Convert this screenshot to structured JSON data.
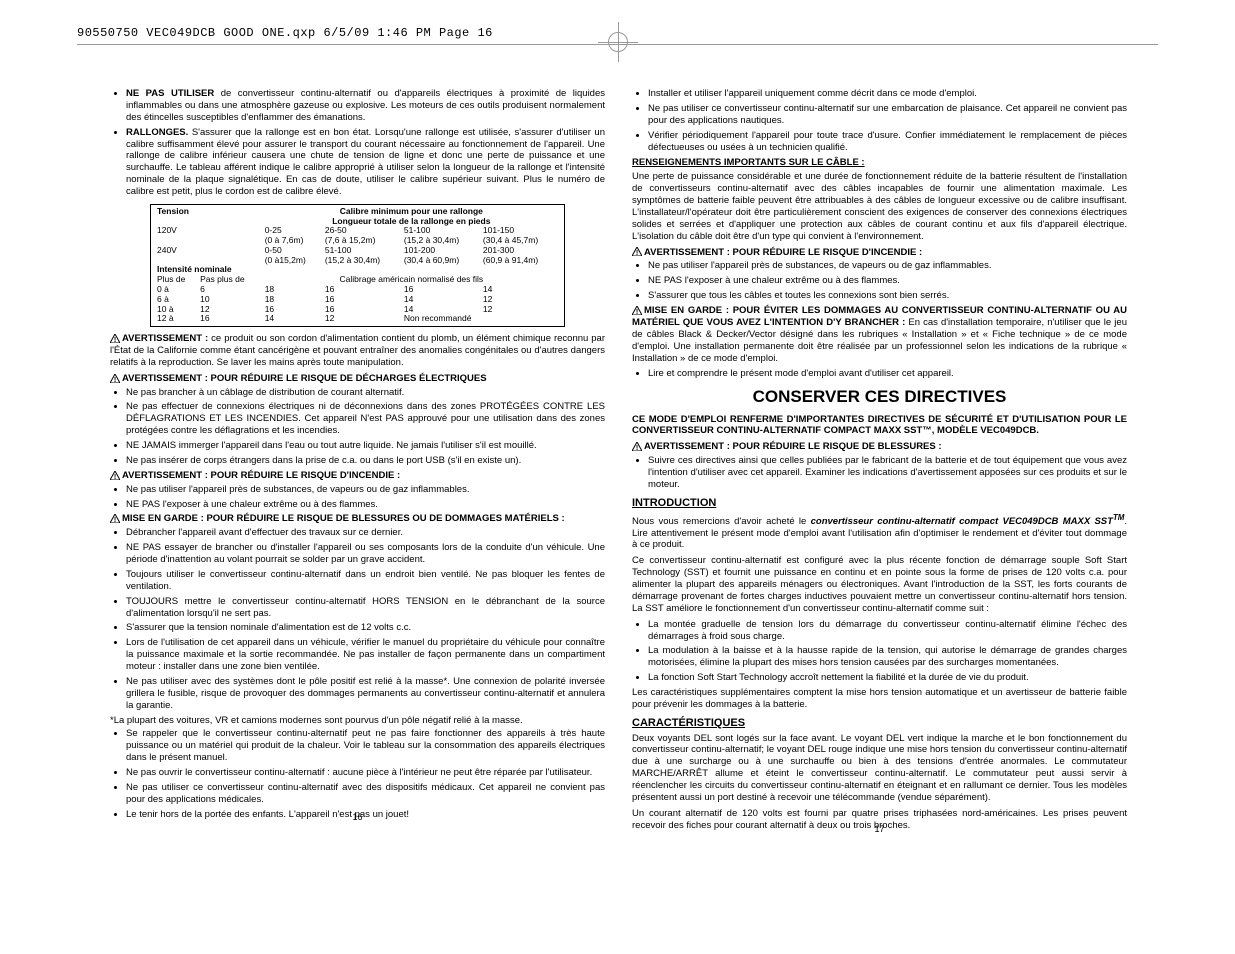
{
  "header": "90550750 VEC049DCB GOOD ONE.qxp  6/5/09  1:46 PM  Page 16",
  "left": {
    "bullets1": [
      {
        "lead": "NE PAS UTILISER",
        "text": " de convertisseur continu-alternatif ou d'appareils électriques à proximité de liquides inflammables ou dans une atmosphère gazeuse ou explosive. Les moteurs de ces outils produisent normalement des étincelles susceptibles d'enflammer des émanations."
      },
      {
        "lead": "RALLONGES.",
        "text": " S'assurer que la rallonge est en bon état. Lorsqu'une rallonge est utilisée, s'assurer d'utiliser un calibre suffisamment élevé pour assurer le transport du courant nécessaire au fonctionnement de l'appareil. Une rallonge de calibre inférieur causera une chute de tension de ligne et donc une perte de puissance et une surchauffe. Le tableau afférent indique le calibre approprié à utiliser selon la longueur de la rallonge et l'intensité nominale de la plaque signalétique. En cas de doute, utiliser le calibre supérieur suivant. Plus le numéro de calibre est petit, plus le cordon est de calibre élevé."
      }
    ],
    "table": {
      "title": "Calibre minimum pour une rallonge",
      "subtitle": "Longueur totale de la rallonge en pieds",
      "tension": "Tension",
      "row120": {
        "v": "120V",
        "c1": "0-25",
        "c1b": "(0 à 7,6m)",
        "c2": "26-50",
        "c2b": "(7,6 à 15,2m)",
        "c3": "51-100",
        "c3b": "(15,2 à 30,4m)",
        "c4": "101-150",
        "c4b": "(30,4 à 45,7m)"
      },
      "row240": {
        "v": "240V",
        "c1": "0-50",
        "c1b": "(0 à15,2m)",
        "c2": "51-100",
        "c2b": "(15,2 à 30,4m)",
        "c3": "101-200",
        "c3b": "(30,4 à 60,9m)",
        "c4": "201-300",
        "c4b": "(60,9 à 91,4m)"
      },
      "intensite": "Intensité nominale",
      "plus_de": "Plus de",
      "pas_plus_de": "Pas plus de",
      "calib": "Calibrage américain normalisé des fils",
      "rows": [
        [
          "0   à",
          "6",
          "18",
          "16",
          "16",
          "14"
        ],
        [
          "6   à",
          "10",
          "18",
          "16",
          "14",
          "12"
        ],
        [
          "10 à",
          "12",
          "16",
          "16",
          "14",
          "12"
        ],
        [
          "12 à",
          "16",
          "14",
          "12",
          "Non recommandé",
          ""
        ]
      ]
    },
    "warn_lead": "AVERTISSEMENT :",
    "warn_lead_text": " ce produit ou son cordon d'alimentation contient du plomb, un élément chimique reconnu par l'État de la Californie comme étant cancérigène et pouvant entraîner des anomalies congénitales ou d'autres dangers relatifs à la reproduction. Se laver les mains après toute manipulation.",
    "warn_elec_title": "AVERTISSEMENT :  POUR RÉDUIRE LE RISQUE DE DÉCHARGES ÉLECTRIQUES",
    "elec_bullets": [
      "Ne pas brancher à un câblage de distribution de courant alternatif.",
      "Ne pas effectuer de connexions électriques ni de déconnexions dans des zones PROTÉGÉES CONTRE LES DÉFLAGRATIONS ET LES INCENDIES. Cet appareil N'est PAS approuvé pour une utilisation dans des zones protégées contre les déflagrations et les incendies.",
      "NE JAMAIS immerger l'appareil dans l'eau ou tout autre liquide. Ne jamais l'utiliser s'il est mouillé.",
      "Ne pas insérer de corps étrangers dans la prise de c.a. ou dans le port USB (s'il en existe un)."
    ],
    "warn_fire_title": "AVERTISSEMENT : POUR RÉDUIRE LE RISQUE D'INCENDIE :",
    "fire_bullets": [
      "Ne pas utiliser l'appareil près de substances, de vapeurs ou de gaz inflammables.",
      "NE PAS l'exposer à une chaleur extrême ou à des flammes."
    ],
    "warn_injury_title": "MISE EN GARDE : POUR RÉDUIRE LE RISQUE DE BLESSURES OU DE DOMMAGES MATÉRIELS :",
    "injury_bullets": [
      "Débrancher l'appareil avant d'effectuer des travaux sur ce dernier.",
      "NE PAS essayer de brancher ou d'installer l'appareil ou ses composants lors de la conduite d'un véhicule. Une période d'inattention au volant pourrait se solder par un grave accident.",
      "Toujours utiliser le convertisseur continu-alternatif dans un endroit bien ventilé. Ne pas bloquer les fentes de ventilation.",
      "TOUJOURS mettre le convertisseur continu-alternatif HORS TENSION en le débranchant de la source d'alimentation lorsqu'il ne sert pas.",
      "S'assurer que la tension nominale d'alimentation est de 12 volts c.c.",
      "Lors de l'utilisation de cet appareil dans un véhicule, vérifier le manuel du propriétaire du véhicule pour connaître la puissance maximale et la sortie recommandée. Ne pas installer de façon permanente dans un compartiment moteur : installer dans une zone bien ventilée.",
      "Ne pas utiliser avec des systèmes dont le pôle positif est relié à la masse*. Une connexion de polarité inversée grillera le fusible, risque de provoquer des dommages permanents au convertisseur continu-alternatif et annulera la garantie."
    ],
    "footnote": "*La plupart des voitures, VR et camions modernes sont pourvus d'un pôle négatif relié à la masse.",
    "injury_bullets2": [
      "Se rappeler que le convertisseur continu-alternatif peut ne pas faire fonctionner des appareils à très haute puissance ou un matériel qui produit de la chaleur. Voir le tableau sur la consommation des appareils électriques dans le présent manuel.",
      "Ne pas ouvrir le convertisseur continu-alternatif : aucune pièce à l'intérieur ne peut être réparée par l'utilisateur.",
      "Ne pas utiliser ce convertisseur continu-alternatif avec des dispositifs médicaux. Cet appareil ne convient pas pour des applications médicales.",
      "Le tenir hors de la portée des enfants. L'appareil n'est pas un jouet!"
    ],
    "pagenum": "16"
  },
  "right": {
    "bullets1": [
      "Installer et utiliser l'appareil uniquement comme décrit dans ce mode d'emploi.",
      "Ne pas utiliser ce convertisseur continu-alternatif sur une embarcation de plaisance. Cet appareil ne convient pas pour des applications nautiques.",
      "Vérifier périodiquement l'appareil pour toute trace d'usure. Confier immédiatement le remplacement de pièces défectueuses ou usées à un technicien qualifié."
    ],
    "cable_title": "RENSEIGNEMENTS IMPORTANTS SUR LE CÂBLE :",
    "cable_para": "Une perte de puissance considérable et une durée de fonctionnement réduite de la batterie résultent de l'installation de convertisseurs continu-alternatif avec des câbles incapables de fournir une alimentation maximale. Les symptômes de batterie faible peuvent être attribuables à des câbles de longueur excessive ou de calibre insuffisant. L'installateur/l'opérateur doit être particulièrement conscient des exigences de conserver des connexions électriques solides et serrées et d'appliquer une protection aux câbles de courant continu et aux fils d'appareil électrique. L'isolation du câble doit être d'un type qui convient à l'environnement.",
    "warn_fire_title": "AVERTISSEMENT : POUR RÉDUIRE LE RISQUE D'INCENDIE :",
    "fire_bullets": [
      "Ne pas utiliser l'appareil près de substances, de vapeurs ou de gaz inflammables.",
      "NE PAS l'exposer à une chaleur extrême ou à des flammes.",
      "S'assurer que tous les câbles et toutes les connexions sont bien serrés."
    ],
    "mise_title": "MISE EN GARDE : POUR ÉVITER LES DOMMAGES AU CONVERTISSEUR CONTINU-ALTERNATIF OU AU MATÉRIEL QUE VOUS AVEZ L'INTENTION D'Y BRANCHER :",
    "mise_text": " En cas d'installation temporaire, n'utiliser que le jeu de câbles Black & Decker/Vector désigné dans les rubriques « Installation » et « Fiche technique » de ce mode d'emploi. Une installation permanente doit être réalisée par un professionnel selon les indications de la rubrique « Installation » de ce mode d'emploi.",
    "mise_bullet": "Lire et comprendre le présent mode d'emploi avant d'utiliser cet appareil.",
    "big_title": "CONSERVER CES DIRECTIVES",
    "directive_para": "CE MODE D'EMPLOI RENFERME D'IMPORTANTES DIRECTIVES DE SÉCURITÉ ET D'UTILISATION POUR LE CONVERTISSEUR CONTINU-ALTERNATIF COMPACT MAXX SST™, MODÈLE VEC049DCB.",
    "warn_bless_title": "AVERTISSEMENT : POUR RÉDUIRE LE RISQUE DE BLESSURES :",
    "bless_bullet": "Suivre ces directives ainsi que celles publiées par le fabricant de la batterie et de tout équipement que vous avez l'intention d'utiliser avec cet appareil. Examiner les indications d'avertissement apposées sur ces produits et sur le moteur.",
    "intro_title": "INTRODUCTION",
    "intro_p1a": "Nous vous remercions d'avoir acheté le ",
    "intro_p1b": "convertisseur continu-alternatif compact VEC049DCB MAXX SST",
    "intro_p1c": ". Lire attentivement le présent mode d'emploi avant l'utilisation afin d'optimiser le rendement et d'éviter tout dommage à ce produit.",
    "intro_p2": "Ce convertisseur continu-alternatif est configuré avec la plus récente fonction de démarrage souple Soft Start Technology (SST) et fournit une puissance en continu et en pointe sous la forme de prises de 120 volts c.a. pour alimenter la plupart des appareils ménagers ou électroniques. Avant l'introduction de la SST, les forts courants de démarrage provenant de fortes charges inductives pouvaient mettre un convertisseur continu-alternatif hors tension. La SST améliore le fonctionnement d'un convertisseur continu-alternatif comme suit :",
    "intro_bullets": [
      "La montée graduelle de tension lors du démarrage du convertisseur continu-alternatif élimine l'échec des démarrages à froid sous charge.",
      "La modulation à la baisse et à la hausse rapide de la tension, qui autorise le démarrage de grandes charges motorisées, élimine la plupart des mises hors tension causées par des surcharges momentanées.",
      "La fonction Soft Start Technology accroît nettement la fiabilité et la durée de vie du produit."
    ],
    "intro_p3": "Les caractéristiques supplémentaires comptent la mise hors tension automatique et un avertisseur de batterie faible pour prévenir les dommages à la batterie.",
    "carac_title": "CARACTÉRISTIQUES",
    "carac_p1": "Deux voyants DEL sont logés sur la face avant. Le voyant DEL vert indique la marche et le bon fonctionnement du convertisseur continu-alternatif; le voyant DEL rouge indique une mise hors tension du convertisseur continu-alternatif due à une surcharge ou à une surchauffe ou bien à des tensions d'entrée anormales. Le commutateur MARCHE/ARRÊT allume et éteint le convertisseur continu-alternatif. Le commutateur peut aussi servir à réenclencher les circuits du convertisseur continu-alternatif en éteignant et en rallumant ce dernier. Tous les modèles présentent aussi un port destiné à recevoir une télécommande (vendue séparément).",
    "carac_p2": "Un courant alternatif de 120 volts est fourni par quatre prises triphasées nord-américaines. Les prises peuvent recevoir des fiches pour courant alternatif à deux ou trois broches.",
    "pagenum": "17"
  }
}
